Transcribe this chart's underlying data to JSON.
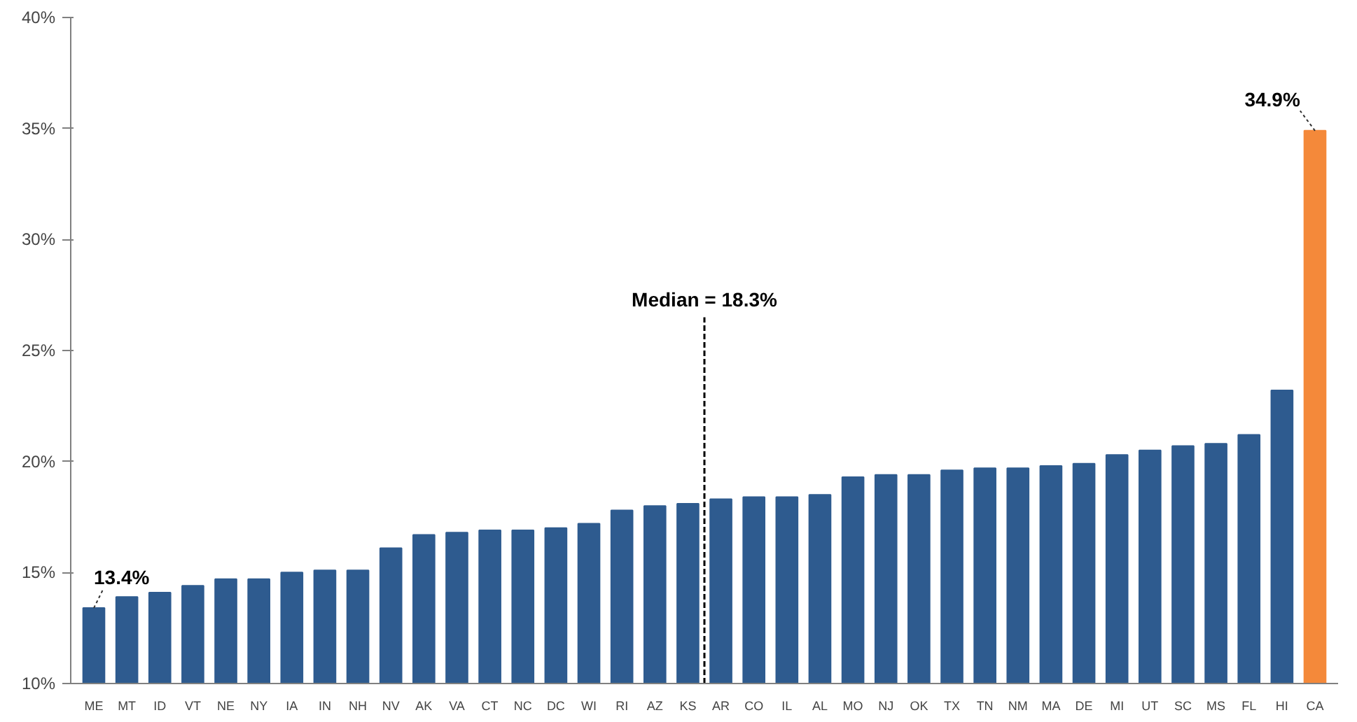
{
  "chart_data": {
    "type": "bar",
    "categories": [
      "ME",
      "MT",
      "ID",
      "VT",
      "NE",
      "NY",
      "IA",
      "IN",
      "NH",
      "NV",
      "AK",
      "VA",
      "CT",
      "NC",
      "DC",
      "WI",
      "RI",
      "AZ",
      "KS",
      "AR",
      "CO",
      "IL",
      "AL",
      "MO",
      "NJ",
      "OK",
      "TX",
      "TN",
      "NM",
      "MA",
      "DE",
      "MI",
      "UT",
      "SC",
      "MS",
      "FL",
      "HI",
      "CA"
    ],
    "values": [
      13.4,
      13.9,
      14.1,
      14.4,
      14.7,
      14.7,
      15.0,
      15.1,
      15.1,
      16.1,
      16.7,
      16.8,
      16.9,
      16.9,
      17.0,
      17.2,
      17.8,
      18.0,
      18.1,
      18.3,
      18.4,
      18.4,
      18.5,
      19.3,
      19.4,
      19.4,
      19.6,
      19.7,
      19.7,
      19.8,
      19.9,
      20.3,
      20.5,
      20.7,
      20.8,
      21.2,
      23.2,
      34.9
    ],
    "colors": [
      "#2e5b8f",
      "#2e5b8f",
      "#2e5b8f",
      "#2e5b8f",
      "#2e5b8f",
      "#2e5b8f",
      "#2e5b8f",
      "#2e5b8f",
      "#2e5b8f",
      "#2e5b8f",
      "#2e5b8f",
      "#2e5b8f",
      "#2e5b8f",
      "#2e5b8f",
      "#2e5b8f",
      "#2e5b8f",
      "#2e5b8f",
      "#2e5b8f",
      "#2e5b8f",
      "#2e5b8f",
      "#2e5b8f",
      "#2e5b8f",
      "#2e5b8f",
      "#2e5b8f",
      "#2e5b8f",
      "#2e5b8f",
      "#2e5b8f",
      "#2e5b8f",
      "#2e5b8f",
      "#2e5b8f",
      "#2e5b8f",
      "#2e5b8f",
      "#2e5b8f",
      "#2e5b8f",
      "#2e5b8f",
      "#2e5b8f",
      "#2e5b8f",
      "#f4893a"
    ],
    "value_labels": [
      "13.4%",
      null,
      null,
      null,
      null,
      null,
      null,
      null,
      null,
      null,
      null,
      null,
      null,
      null,
      null,
      null,
      null,
      null,
      null,
      null,
      null,
      null,
      null,
      null,
      null,
      null,
      null,
      null,
      null,
      null,
      null,
      null,
      null,
      null,
      null,
      null,
      null,
      "34.9%"
    ],
    "ylim": [
      10,
      40
    ],
    "yticks": [
      {
        "value": 10,
        "label": "10%"
      },
      {
        "value": 15,
        "label": "15%"
      },
      {
        "value": 20,
        "label": "20%"
      },
      {
        "value": 25,
        "label": "25%"
      },
      {
        "value": 30,
        "label": "30%"
      },
      {
        "value": 35,
        "label": "35%"
      },
      {
        "value": 40,
        "label": "40%"
      }
    ],
    "annotations": [
      "Median = 18.3%"
    ],
    "grid": false
  }
}
